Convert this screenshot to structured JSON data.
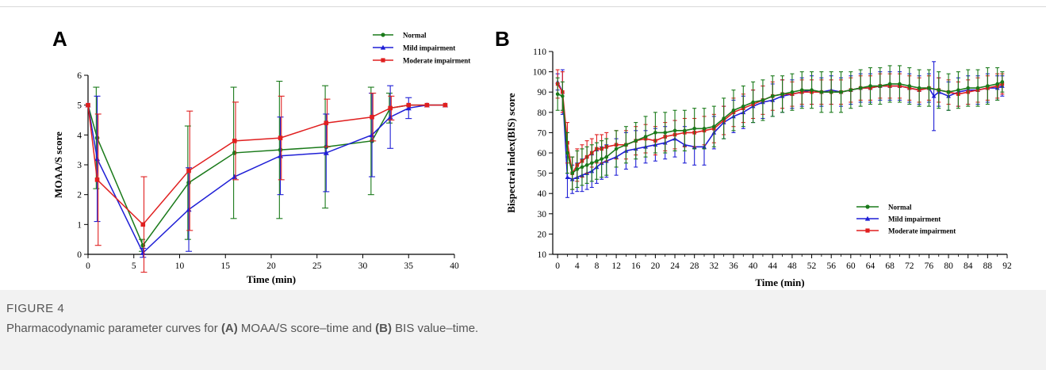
{
  "figure": {
    "label": "FIGURE 4",
    "caption_parts": [
      {
        "text": "Pharmacodynamic parameter curves for ",
        "bold": false
      },
      {
        "text": "(A)",
        "bold": true
      },
      {
        "text": " MOAA/S score–time and ",
        "bold": false
      },
      {
        "text": "(B)",
        "bold": true
      },
      {
        "text": " BIS value–time.",
        "bold": false
      }
    ]
  },
  "colors": {
    "normal": "#1a7a1a",
    "mild": "#1f1fd6",
    "moderate": "#e01f1f",
    "axis": "#000000"
  },
  "chart_data": [
    {
      "panel": "A",
      "type": "line",
      "xlabel": "Time (min)",
      "ylabel": "MOAA/S score",
      "xlim": [
        0,
        40
      ],
      "ylim": [
        0,
        6
      ],
      "xticks": [
        0,
        5,
        10,
        15,
        20,
        25,
        30,
        35,
        40
      ],
      "yticks": [
        0,
        1,
        2,
        3,
        4,
        5,
        6
      ],
      "legend_position": "top-right",
      "series": [
        {
          "name": "Normal",
          "key": "normal",
          "marker": "circle",
          "x": [
            0,
            1,
            6,
            11,
            16,
            21,
            26,
            31,
            33,
            35,
            37,
            39
          ],
          "y": [
            5,
            3.9,
            0.3,
            2.4,
            3.4,
            3.5,
            3.6,
            3.8,
            4.9,
            5,
            5,
            5
          ],
          "err": [
            0,
            1.7,
            0.2,
            1.9,
            2.2,
            2.3,
            2.05,
            1.8,
            0.5,
            0,
            0,
            0
          ]
        },
        {
          "name": "Mild impairment",
          "key": "mild",
          "marker": "triangle",
          "x": [
            0,
            1,
            6,
            11,
            16,
            21,
            26,
            31,
            33,
            35,
            37,
            39
          ],
          "y": [
            5,
            3.2,
            0.05,
            1.5,
            2.6,
            3.3,
            3.4,
            4.0,
            4.6,
            4.9,
            5,
            5
          ],
          "err": [
            0,
            2.1,
            0.15,
            1.4,
            0,
            1.3,
            1.3,
            1.4,
            1.05,
            0.35,
            0,
            0
          ]
        },
        {
          "name": "Moderate impairment",
          "key": "moderate",
          "marker": "square",
          "x": [
            0,
            1,
            6,
            11,
            16,
            21,
            26,
            31,
            33,
            35,
            37,
            39
          ],
          "y": [
            5,
            2.5,
            1.0,
            2.8,
            3.8,
            3.9,
            4.4,
            4.6,
            4.9,
            5,
            5,
            5
          ],
          "err": [
            0,
            2.2,
            1.6,
            2.0,
            1.3,
            1.4,
            0.8,
            0.8,
            0.4,
            0,
            0,
            0
          ]
        }
      ]
    },
    {
      "panel": "B",
      "type": "line",
      "xlabel": "Time (min)",
      "ylabel": "Bispectral index(BIS) score",
      "xlim": [
        -1,
        92
      ],
      "ylim": [
        10,
        110
      ],
      "xticks": [
        0,
        4,
        8,
        12,
        16,
        20,
        24,
        28,
        32,
        36,
        40,
        44,
        48,
        52,
        56,
        60,
        64,
        68,
        72,
        76,
        80,
        84,
        88,
        92
      ],
      "yticks": [
        10,
        20,
        30,
        40,
        50,
        60,
        70,
        80,
        90,
        100,
        110
      ],
      "legend_position": "lower-right",
      "series": [
        {
          "name": "Normal",
          "key": "normal",
          "marker": "circle",
          "x": [
            0,
            1,
            2,
            3,
            4,
            5,
            6,
            7,
            8,
            9,
            10,
            12,
            14,
            16,
            18,
            20,
            22,
            24,
            26,
            28,
            30,
            32,
            34,
            36,
            38,
            40,
            42,
            44,
            46,
            48,
            50,
            52,
            54,
            56,
            58,
            60,
            62,
            64,
            66,
            68,
            70,
            72,
            74,
            76,
            78,
            80,
            82,
            84,
            86,
            88,
            90,
            91
          ],
          "y": [
            89,
            88,
            60,
            50,
            52,
            53,
            54,
            55,
            56,
            57,
            58,
            62,
            64,
            66,
            68,
            70,
            70,
            71,
            71,
            72,
            72,
            73,
            77,
            81,
            83,
            85,
            86,
            88,
            89,
            90,
            91,
            91,
            90,
            90,
            90,
            91,
            92,
            93,
            93,
            94,
            94,
            93,
            92,
            92,
            91,
            90,
            91,
            92,
            92,
            93,
            94,
            95
          ],
          "err": [
            8,
            7,
            10,
            8,
            9,
            9,
            9,
            9,
            9,
            9,
            9,
            9,
            9,
            9,
            10,
            10,
            10,
            10,
            10,
            10,
            10,
            10,
            10,
            10,
            10,
            10,
            10,
            10,
            9,
            9,
            9,
            9,
            10,
            10,
            10,
            9,
            9,
            9,
            9,
            9,
            9,
            9,
            9,
            9,
            9,
            9,
            9,
            9,
            9,
            9,
            8,
            5
          ]
        },
        {
          "name": "Mild impairment",
          "key": "mild",
          "marker": "triangle",
          "x": [
            0,
            1,
            2,
            3,
            4,
            5,
            6,
            7,
            8,
            9,
            10,
            12,
            14,
            16,
            18,
            20,
            22,
            24,
            26,
            28,
            30,
            32,
            34,
            36,
            38,
            40,
            42,
            44,
            46,
            48,
            50,
            52,
            54,
            56,
            58,
            60,
            62,
            64,
            66,
            68,
            70,
            72,
            74,
            76,
            77,
            78,
            80,
            82,
            84,
            86,
            88,
            90,
            91
          ],
          "y": [
            95,
            90,
            48,
            47,
            48,
            49,
            50,
            51,
            53,
            55,
            56,
            58,
            61,
            62,
            63,
            64,
            65,
            67,
            64,
            63,
            63,
            70,
            75,
            78,
            80,
            83,
            85,
            86,
            88,
            89,
            90,
            91,
            90,
            91,
            90,
            91,
            92,
            92,
            93,
            93,
            93,
            92,
            91,
            92,
            88,
            90,
            88,
            90,
            91,
            91,
            92,
            92,
            93
          ],
          "err": [
            4,
            11,
            10,
            7,
            7,
            8,
            8,
            8,
            8,
            8,
            8,
            9,
            9,
            9,
            8,
            8,
            8,
            9,
            9,
            9,
            9,
            8,
            8,
            8,
            8,
            8,
            8,
            8,
            8,
            7,
            7,
            7,
            7,
            7,
            7,
            7,
            7,
            7,
            7,
            7,
            7,
            7,
            7,
            7,
            17,
            7,
            7,
            7,
            7,
            7,
            7,
            6,
            5
          ]
        },
        {
          "name": "Moderate impairment",
          "key": "moderate",
          "marker": "square",
          "x": [
            0,
            1,
            2,
            3,
            4,
            5,
            6,
            7,
            8,
            9,
            10,
            12,
            14,
            16,
            18,
            20,
            22,
            24,
            26,
            28,
            30,
            32,
            34,
            36,
            38,
            40,
            42,
            44,
            46,
            48,
            50,
            52,
            54,
            56,
            58,
            60,
            62,
            64,
            66,
            68,
            70,
            72,
            74,
            76,
            78,
            80,
            82,
            84,
            86,
            88,
            90,
            91
          ],
          "y": [
            94,
            90,
            65,
            50,
            54,
            56,
            58,
            60,
            62,
            62,
            63,
            64,
            64,
            66,
            67,
            66,
            68,
            69,
            70,
            70,
            71,
            72,
            76,
            80,
            82,
            84,
            86,
            88,
            89,
            89,
            90,
            90,
            90,
            90,
            90,
            91,
            92,
            92,
            93,
            93,
            93,
            92,
            91,
            92,
            91,
            90,
            89,
            90,
            91,
            92,
            93,
            94
          ],
          "err": [
            7,
            10,
            10,
            8,
            8,
            8,
            8,
            7,
            7,
            7,
            7,
            7,
            7,
            7,
            7,
            7,
            7,
            7,
            7,
            7,
            7,
            7,
            7,
            7,
            7,
            7,
            7,
            7,
            7,
            6,
            6,
            6,
            6,
            6,
            6,
            6,
            6,
            6,
            6,
            6,
            6,
            6,
            6,
            6,
            6,
            6,
            6,
            6,
            6,
            6,
            6,
            5
          ]
        }
      ]
    }
  ]
}
